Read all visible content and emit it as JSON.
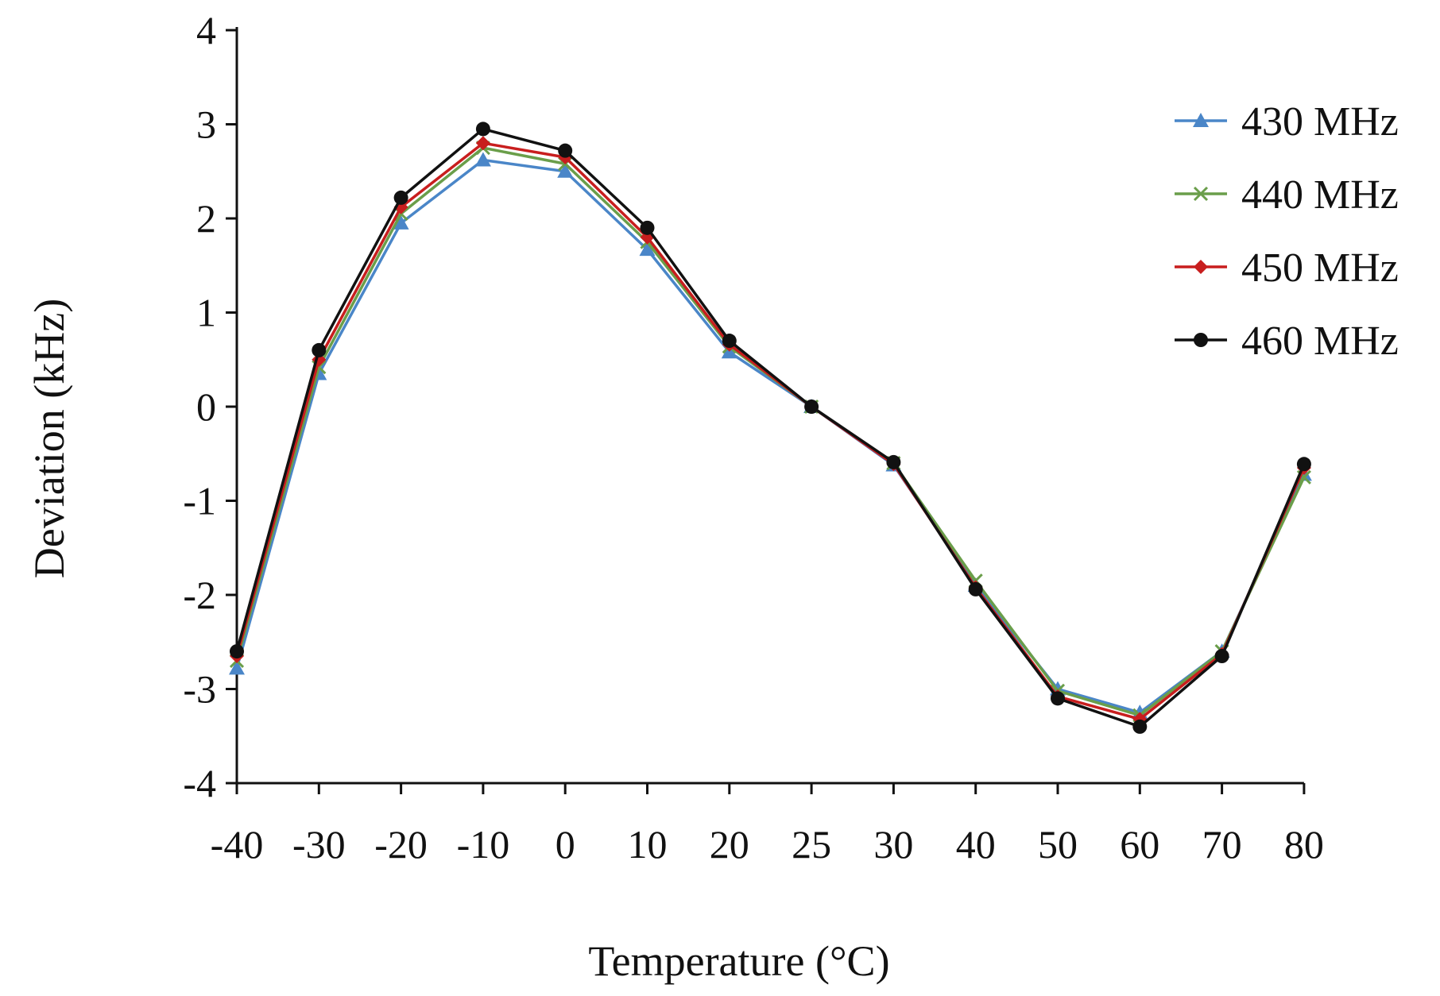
{
  "chart_data": {
    "type": "line",
    "title": "",
    "xlabel": "Temperature (°C)",
    "ylabel": "Deviation (kHz)",
    "categories": [
      "-40",
      "-30",
      "-20",
      "-10",
      "0",
      "10",
      "20",
      "25",
      "30",
      "40",
      "50",
      "60",
      "70",
      "80"
    ],
    "ylim": [
      -4,
      4
    ],
    "yticks": [
      "-4",
      "-3",
      "-2",
      "-1",
      "0",
      "1",
      "2",
      "3",
      "4"
    ],
    "grid": false,
    "legend_position": "right",
    "series": [
      {
        "name": "430 MHz",
        "color": "#4a86c8",
        "marker": "triangle",
        "values": [
          -2.78,
          0.35,
          1.95,
          2.62,
          2.5,
          1.67,
          0.58,
          0.0,
          -0.62,
          -1.9,
          -3.0,
          -3.25,
          -2.6,
          -0.72
        ]
      },
      {
        "name": "440 MHz",
        "color": "#6a9e4a",
        "marker": "x",
        "values": [
          -2.7,
          0.42,
          2.05,
          2.75,
          2.58,
          1.75,
          0.64,
          0.0,
          -0.6,
          -1.85,
          -3.02,
          -3.28,
          -2.6,
          -0.75
        ]
      },
      {
        "name": "450 MHz",
        "color": "#c81e1e",
        "marker": "diamond",
        "values": [
          -2.65,
          0.5,
          2.12,
          2.8,
          2.65,
          1.8,
          0.66,
          0.0,
          -0.61,
          -1.92,
          -3.08,
          -3.32,
          -2.63,
          -0.65
        ]
      },
      {
        "name": "460 MHz",
        "color": "#111111",
        "marker": "circle",
        "values": [
          -2.6,
          0.6,
          2.22,
          2.95,
          2.72,
          1.9,
          0.7,
          0.0,
          -0.59,
          -1.94,
          -3.1,
          -3.4,
          -2.65,
          -0.61
        ]
      }
    ]
  }
}
